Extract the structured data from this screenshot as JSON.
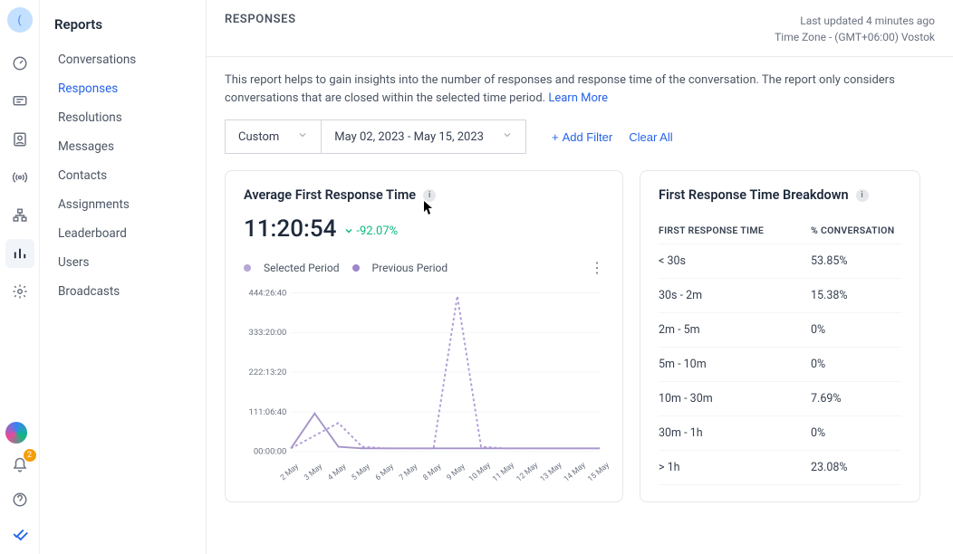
{
  "rail": {
    "avatar_initial": "(",
    "notif_count": "2",
    "icons": [
      "gauge",
      "chat",
      "contacts",
      "broadcast",
      "org",
      "reports",
      "settings"
    ]
  },
  "sidebar": {
    "title": "Reports",
    "items": [
      "Conversations",
      "Responses",
      "Resolutions",
      "Messages",
      "Contacts",
      "Assignments",
      "Leaderboard",
      "Users",
      "Broadcasts"
    ],
    "active_index": 1
  },
  "header": {
    "title": "RESPONSES",
    "last_updated": "Last updated 4 minutes ago",
    "timezone": "Time Zone - (GMT+06:00) Vostok"
  },
  "description": {
    "text": "This report helps to gain insights into the number of responses and response time of the conversation. The report only considers conversations that are closed within the selected time period.",
    "learn_more": "Learn More"
  },
  "filters": {
    "range_type": "Custom",
    "date_range": "May 02, 2023 - May 15, 2023",
    "add_filter": "Add Filter",
    "clear_all": "Clear All"
  },
  "avg_card": {
    "title": "Average First Response Time",
    "value": "11:20:54",
    "delta": "-92.07%",
    "delta_color": "#10b981",
    "legend_selected": "Selected Period",
    "legend_previous": "Previous Period",
    "selected_color": "#b5a8d4",
    "previous_color": "#9d87c9",
    "y_ticks": [
      "444:26:40",
      "333:20:00",
      "222:13:20",
      "111:06:40",
      "00:00:00"
    ],
    "x_ticks": [
      "2 May",
      "3 May",
      "4 May",
      "5 May",
      "6 May",
      "7 May",
      "8 May",
      "9 May",
      "10 May",
      "11 May",
      "12 May",
      "13 May",
      "14 May",
      "15 May"
    ],
    "selected_series": [
      0.02,
      0.24,
      0.03,
      0.02,
      0.02,
      0.02,
      0.02,
      0.02,
      0.02,
      0.02,
      0.02,
      0.02,
      0.02,
      0.02
    ],
    "previous_series": [
      0.02,
      0.1,
      0.18,
      0.03,
      0.02,
      0.02,
      0.02,
      0.98,
      0.03,
      0.02,
      0.02,
      0.02,
      0.02,
      0.02
    ]
  },
  "breakdown_card": {
    "title": "First Response Time Breakdown",
    "col1": "FIRST RESPONSE TIME",
    "col2": "% CONVERSATION",
    "rows": [
      {
        "range": "< 30s",
        "pct": "53.85%"
      },
      {
        "range": "30s - 2m",
        "pct": "15.38%"
      },
      {
        "range": "2m - 5m",
        "pct": "0%"
      },
      {
        "range": "5m - 10m",
        "pct": "0%"
      },
      {
        "range": "10m - 30m",
        "pct": "7.69%"
      },
      {
        "range": "30m - 1h",
        "pct": "0%"
      },
      {
        "range": "> 1h",
        "pct": "23.08%"
      }
    ]
  }
}
